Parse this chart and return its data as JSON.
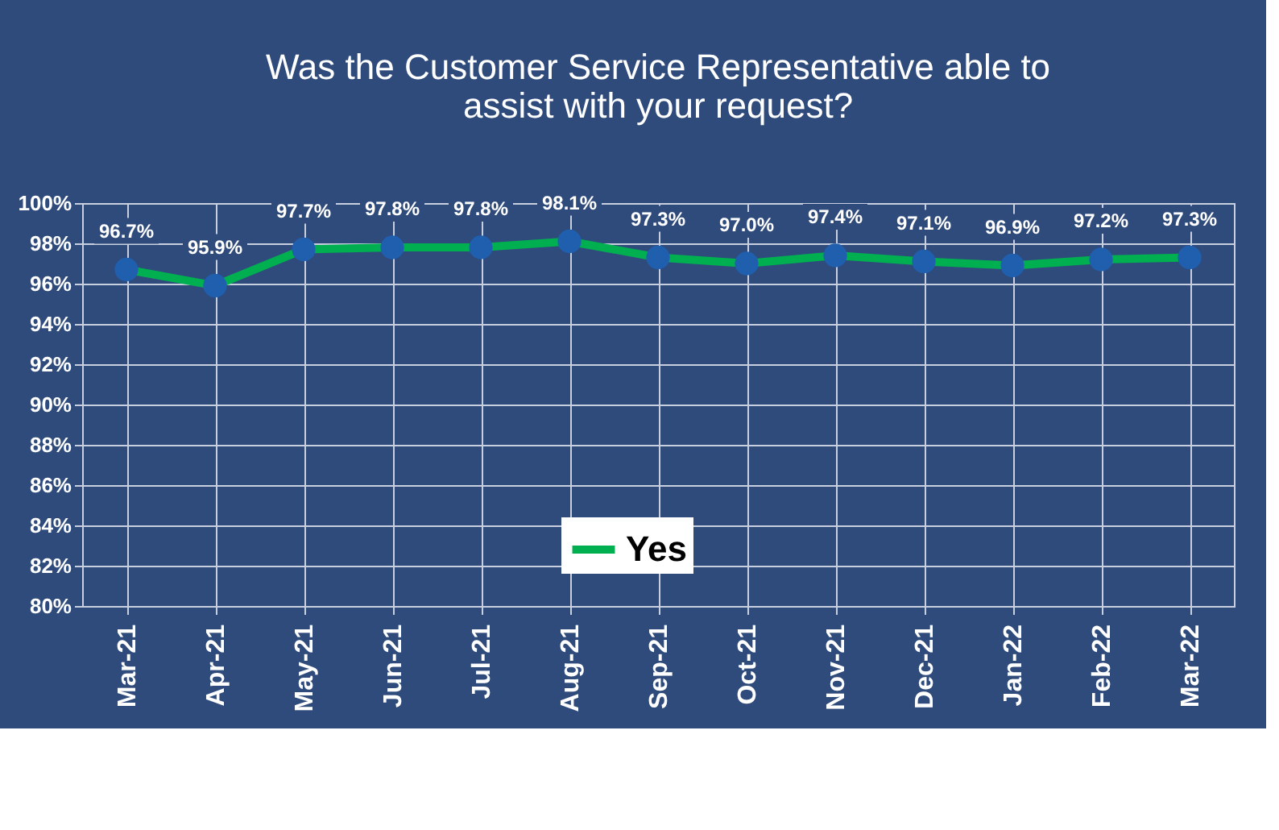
{
  "chart_data": {
    "type": "line",
    "title": "Was the Customer Service Representative able to\nassist with your request?",
    "categories": [
      "Mar-21",
      "Apr-21",
      "May-21",
      "Jun-21",
      "Jul-21",
      "Aug-21",
      "Sep-21",
      "Oct-21",
      "Nov-21",
      "Dec-21",
      "Jan-22",
      "Feb-22",
      "Mar-22"
    ],
    "series": [
      {
        "name": "Yes",
        "color": "#00b050",
        "values": [
          96.7,
          95.9,
          97.7,
          97.8,
          97.8,
          98.1,
          97.3,
          97.0,
          97.4,
          97.1,
          96.9,
          97.2,
          97.3
        ],
        "value_labels": [
          "96.7%",
          "95.9%",
          "97.7%",
          "97.8%",
          "97.8%",
          "98.1%",
          "97.3%",
          "97.0%",
          "97.4%",
          "97.1%",
          "96.9%",
          "97.2%",
          "97.3%"
        ]
      }
    ],
    "ylim": [
      80,
      100
    ],
    "yticks": [
      {
        "value": 80,
        "label": "80%"
      },
      {
        "value": 82,
        "label": "82%"
      },
      {
        "value": 84,
        "label": "84%"
      },
      {
        "value": 86,
        "label": "86%"
      },
      {
        "value": 88,
        "label": "88%"
      },
      {
        "value": 90,
        "label": "90%"
      },
      {
        "value": 92,
        "label": "92%"
      },
      {
        "value": 94,
        "label": "94%"
      },
      {
        "value": 96,
        "label": "96%"
      },
      {
        "value": 98,
        "label": "98%"
      },
      {
        "value": 100,
        "label": "100%"
      }
    ],
    "grid": true,
    "legend": "bottom",
    "marker": "circle",
    "line_style": "solid"
  }
}
